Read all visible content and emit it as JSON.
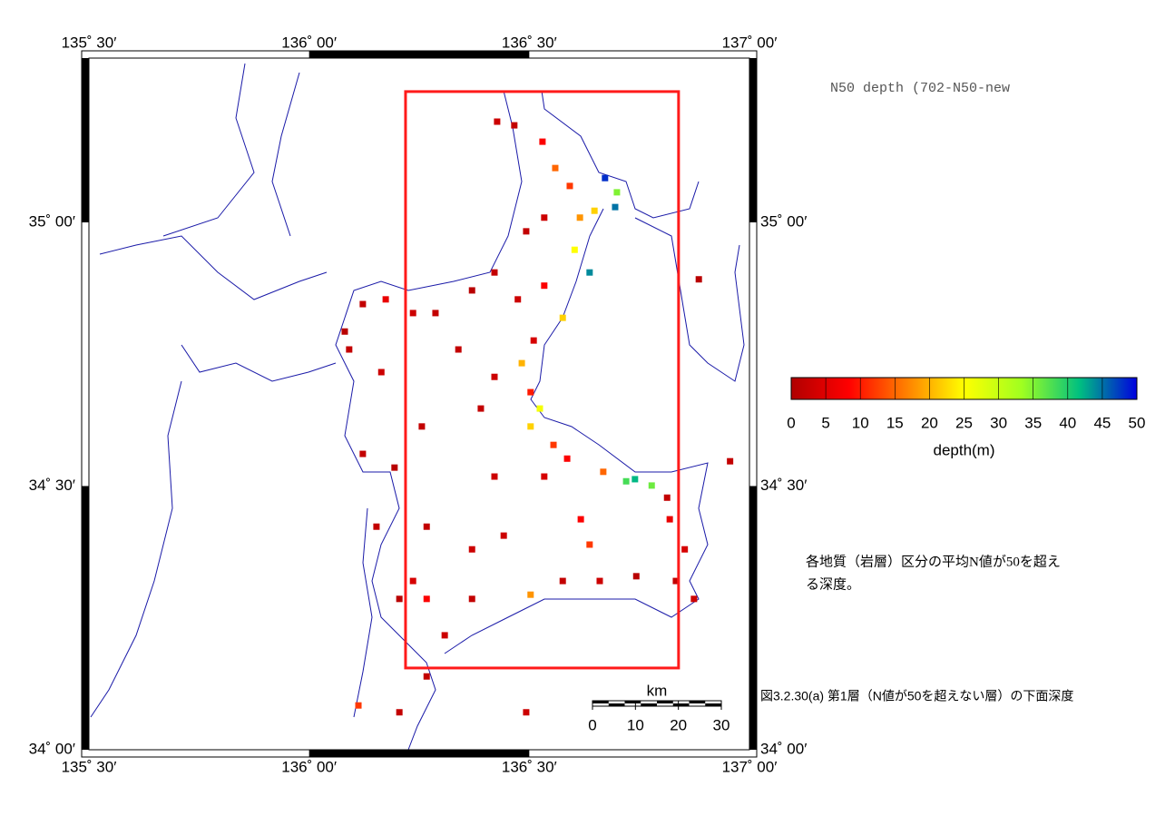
{
  "chart_data": {
    "type": "map",
    "title": "N50 depth (702-N50-new",
    "note": [
      "各地質（岩層）区分の平均N値が50を超え",
      "る深度。"
    ],
    "caption": "図3.2.30(a)  第1層（N値が50を超えない層）の下面深度",
    "xlim": [
      135.5,
      137.0
    ],
    "ylim": [
      34.0,
      35.3115
    ],
    "xticks": [
      {
        "value": 135.5,
        "label": "135˚ 30′"
      },
      {
        "value": 136.0,
        "label": "136˚ 00′"
      },
      {
        "value": 136.5,
        "label": "136˚ 30′"
      },
      {
        "value": 137.0,
        "label": "137˚ 00′"
      }
    ],
    "yticks": [
      {
        "value": 34.0,
        "label": "34˚ 00′"
      },
      {
        "value": 34.5,
        "label": "34˚ 30′"
      },
      {
        "value": 35.0,
        "label": "35˚ 00′"
      }
    ],
    "study_area": {
      "xlim": [
        136.219,
        136.839
      ],
      "ylim": [
        34.155,
        35.248
      ],
      "color": "#ff1a1a"
    },
    "colorbar": {
      "label": "depth(m)",
      "lim": [
        0,
        50
      ],
      "ticks": [
        0,
        5,
        10,
        15,
        20,
        25,
        30,
        35,
        40,
        45,
        50
      ],
      "colors": [
        "#b00000",
        "#ff0000",
        "#ff8000",
        "#ffff00",
        "#a0ff20",
        "#00c080",
        "#0000e0"
      ]
    },
    "scalebar": {
      "label": "km",
      "lim": [
        0,
        30
      ],
      "ticks": [
        0,
        10,
        20,
        30
      ]
    },
    "points": {
      "lon": [
        136.427,
        136.466,
        136.53,
        136.559,
        136.592,
        136.672,
        136.699,
        136.695,
        136.648,
        136.615,
        136.534,
        136.493,
        136.603,
        136.637,
        136.534,
        136.421,
        136.474,
        136.37,
        136.236,
        136.287,
        136.576,
        136.51,
        136.483,
        136.339,
        136.421,
        136.503,
        136.524,
        136.39,
        136.256,
        136.503,
        136.555,
        136.586,
        136.668,
        136.72,
        136.74,
        136.778,
        136.813,
        136.819,
        136.617,
        136.534,
        136.421,
        136.267,
        136.37,
        136.236,
        136.267,
        136.37,
        136.503,
        136.576,
        136.66,
        136.743,
        136.833,
        136.874,
        136.853,
        136.956,
        136.885,
        136.122,
        136.081,
        136.091,
        136.164,
        136.122,
        136.194,
        136.153,
        136.205,
        136.308,
        136.267,
        136.205,
        136.493,
        136.112,
        136.174,
        136.442,
        136.637
      ],
      "lat": [
        35.191,
        35.184,
        35.153,
        35.103,
        35.069,
        35.084,
        35.057,
        35.029,
        35.022,
        35.009,
        35.009,
        34.983,
        34.948,
        34.905,
        34.88,
        34.905,
        34.854,
        34.871,
        34.828,
        34.828,
        34.819,
        34.776,
        34.733,
        34.759,
        34.707,
        34.678,
        34.647,
        34.647,
        34.613,
        34.613,
        34.578,
        34.552,
        34.527,
        34.509,
        34.513,
        34.501,
        34.478,
        34.437,
        34.437,
        34.518,
        34.518,
        34.423,
        34.38,
        34.32,
        34.286,
        34.286,
        34.294,
        34.32,
        34.32,
        34.329,
        34.32,
        34.286,
        34.38,
        34.547,
        34.892,
        34.845,
        34.793,
        34.759,
        34.716,
        34.561,
        34.535,
        34.423,
        34.286,
        34.217,
        34.139,
        34.071,
        34.071,
        34.084,
        34.854,
        34.406,
        34.389
      ],
      "depth": [
        3,
        2,
        8,
        15,
        12,
        48,
        35,
        45,
        22,
        18,
        3,
        2,
        25,
        44,
        8,
        2,
        3,
        1,
        3,
        2,
        22,
        4,
        20,
        2,
        3,
        10,
        26,
        2,
        2,
        22,
        12,
        8,
        15,
        38,
        42,
        36,
        2,
        6,
        8,
        4,
        3,
        2,
        3,
        4,
        8,
        2,
        18,
        2,
        3,
        1,
        2,
        3,
        4,
        2,
        1,
        2,
        1,
        2,
        3,
        2,
        1,
        2,
        1,
        3,
        2,
        2,
        3,
        12,
        6,
        3,
        12
      ]
    }
  }
}
